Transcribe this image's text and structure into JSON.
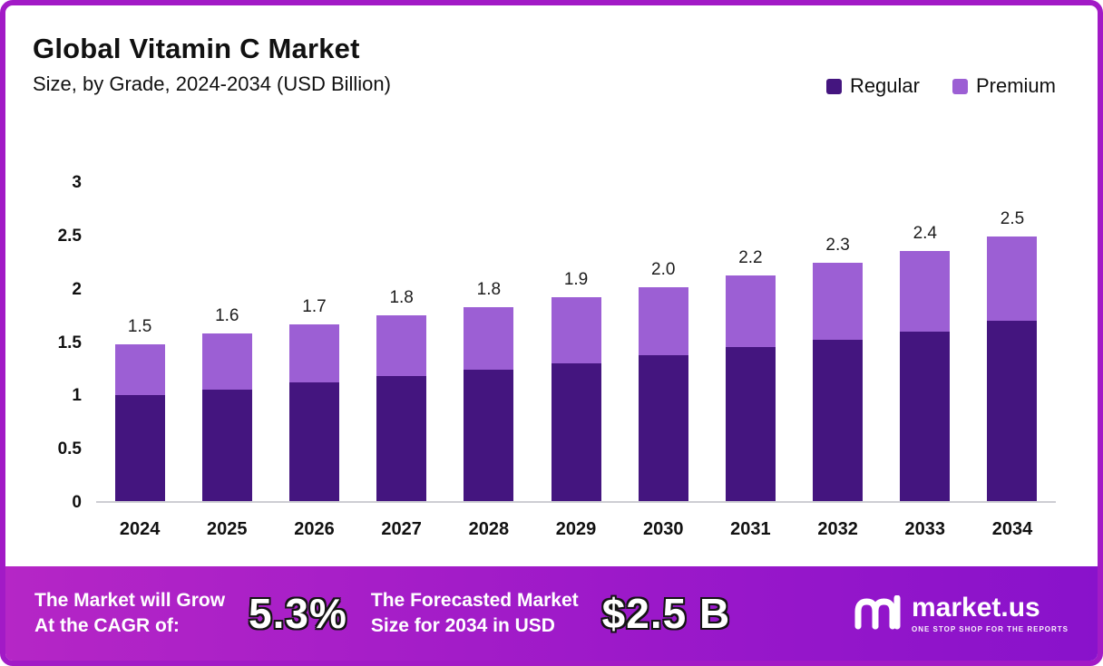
{
  "frame": {
    "accent_color": "#a21ac6"
  },
  "header": {
    "title": "Global Vitamin C Market",
    "subtitle": "Size, by Grade, 2024-2034 (USD Billion)"
  },
  "legend": [
    {
      "label": "Regular",
      "color": "#44157f"
    },
    {
      "label": "Premium",
      "color": "#9c5fd4"
    }
  ],
  "chart_data": {
    "type": "bar",
    "stacked": true,
    "title": "Global Vitamin C Market Size, by Grade, 2024-2034 (USD Billion)",
    "categories": [
      "2024",
      "2025",
      "2026",
      "2027",
      "2028",
      "2029",
      "2030",
      "2031",
      "2032",
      "2033",
      "2034"
    ],
    "series": [
      {
        "name": "Regular",
        "color": "#44157f",
        "values": [
          1.0,
          1.05,
          1.12,
          1.18,
          1.24,
          1.3,
          1.38,
          1.45,
          1.52,
          1.6,
          1.7
        ]
      },
      {
        "name": "Premium",
        "color": "#9c5fd4",
        "values": [
          0.48,
          0.53,
          0.55,
          0.57,
          0.59,
          0.62,
          0.64,
          0.68,
          0.73,
          0.76,
          0.8
        ]
      }
    ],
    "total_labels": [
      "1.5",
      "1.6",
      "1.7",
      "1.8",
      "1.8",
      "1.9",
      "2.0",
      "2.2",
      "2.3",
      "2.4",
      "2.5"
    ],
    "yticks": [
      3,
      2.5,
      2,
      1.5,
      1,
      0.5,
      0
    ],
    "ylim": [
      0,
      3
    ],
    "xlabel": "",
    "ylabel": "",
    "grid": false,
    "legend_position": "top-right"
  },
  "banner": {
    "cagr_line1": "The Market will Grow",
    "cagr_line2": "At the CAGR of:",
    "cagr_value": "5.3%",
    "forecast_line1": "The Forecasted Market",
    "forecast_line2": "Size for 2034 in USD",
    "forecast_value": "$2.5 B",
    "logo_text": "market.us",
    "logo_tagline": "ONE STOP SHOP FOR THE REPORTS"
  }
}
